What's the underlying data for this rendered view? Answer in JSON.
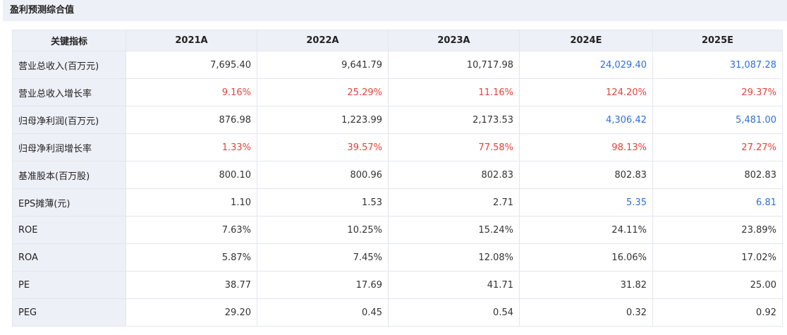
{
  "panel": {
    "title": "盈利预测综合值"
  },
  "colors": {
    "red": "#e2433a",
    "blue": "#2f6fd6",
    "text": "#333333",
    "header_bg": "#eef0f8"
  },
  "table": {
    "columns": [
      "关键指标",
      "2021A",
      "2022A",
      "2023A",
      "2024E",
      "2025E"
    ],
    "rows": [
      {
        "label": "营业总收入(百万元)",
        "values": [
          "7,695.40",
          "9,641.79",
          "10,717.98",
          "24,029.40",
          "31,087.28"
        ],
        "colors": [
          "text",
          "text",
          "text",
          "blue",
          "blue"
        ]
      },
      {
        "label": "营业总收入增长率",
        "values": [
          "9.16%",
          "25.29%",
          "11.16%",
          "124.20%",
          "29.37%"
        ],
        "colors": [
          "red",
          "red",
          "red",
          "red",
          "red"
        ]
      },
      {
        "label": "归母净利润(百万元)",
        "values": [
          "876.98",
          "1,223.99",
          "2,173.53",
          "4,306.42",
          "5,481.00"
        ],
        "colors": [
          "text",
          "text",
          "text",
          "blue",
          "blue"
        ]
      },
      {
        "label": "归母净利润增长率",
        "values": [
          "1.33%",
          "39.57%",
          "77.58%",
          "98.13%",
          "27.27%"
        ],
        "colors": [
          "red",
          "red",
          "red",
          "red",
          "red"
        ]
      },
      {
        "label": "基准股本(百万股)",
        "values": [
          "800.10",
          "800.96",
          "802.83",
          "802.83",
          "802.83"
        ],
        "colors": [
          "text",
          "text",
          "text",
          "text",
          "text"
        ]
      },
      {
        "label": "EPS摊薄(元)",
        "values": [
          "1.10",
          "1.53",
          "2.71",
          "5.35",
          "6.81"
        ],
        "colors": [
          "text",
          "text",
          "text",
          "blue",
          "blue"
        ]
      },
      {
        "label": "ROE",
        "values": [
          "7.63%",
          "10.25%",
          "15.24%",
          "24.11%",
          "23.89%"
        ],
        "colors": [
          "text",
          "text",
          "text",
          "text",
          "text"
        ]
      },
      {
        "label": "ROA",
        "values": [
          "5.87%",
          "7.45%",
          "12.08%",
          "16.06%",
          "17.02%"
        ],
        "colors": [
          "text",
          "text",
          "text",
          "text",
          "text"
        ]
      },
      {
        "label": "PE",
        "values": [
          "38.77",
          "17.69",
          "41.71",
          "31.82",
          "25.00"
        ],
        "colors": [
          "text",
          "text",
          "text",
          "text",
          "text"
        ]
      },
      {
        "label": "PEG",
        "values": [
          "29.20",
          "0.45",
          "0.54",
          "0.32",
          "0.92"
        ],
        "colors": [
          "text",
          "text",
          "text",
          "text",
          "text"
        ]
      }
    ]
  }
}
